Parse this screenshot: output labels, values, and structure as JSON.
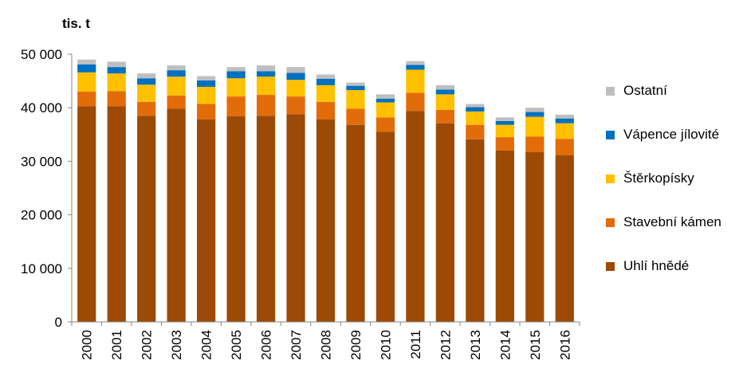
{
  "chart_data": {
    "type": "bar",
    "stacked": true,
    "unit": "tis. t",
    "categories": [
      "2000",
      "2001",
      "2002",
      "2003",
      "2004",
      "2005",
      "2006",
      "2007",
      "2008",
      "2009",
      "2010",
      "2011",
      "2012",
      "2013",
      "2014",
      "2015",
      "2016"
    ],
    "ylim": [
      0,
      50000
    ],
    "yticks": [
      0,
      10000,
      20000,
      30000,
      40000,
      50000
    ],
    "ytick_labels": [
      "0",
      "10 000",
      "20 000",
      "30 000",
      "40 000",
      "50 000"
    ],
    "grid": false,
    "legend_placement": "right",
    "series": [
      {
        "name": "Uhlí hnědé",
        "color": "#9C4A06",
        "values": [
          40300,
          40300,
          38500,
          39800,
          37800,
          38400,
          38500,
          38800,
          37800,
          36800,
          35500,
          39400,
          37100,
          34100,
          32000,
          31700,
          31100
        ]
      },
      {
        "name": "Stavební kámen",
        "color": "#E36C0A",
        "values": [
          2700,
          2800,
          2600,
          2500,
          2900,
          3700,
          3900,
          3300,
          3300,
          3000,
          2700,
          3400,
          2500,
          2700,
          2500,
          2900,
          3100
        ]
      },
      {
        "name": "Štěrkopísky",
        "color": "#FFC000",
        "values": [
          3600,
          3300,
          3200,
          3500,
          3200,
          3400,
          3400,
          3100,
          3100,
          3500,
          2800,
          4300,
          2900,
          2500,
          2300,
          3700,
          2900
        ]
      },
      {
        "name": "Vápence jílovité",
        "color": "#0070C0",
        "values": [
          1500,
          1200,
          1200,
          1200,
          1200,
          1300,
          1000,
          1300,
          1200,
          800,
          700,
          900,
          900,
          800,
          700,
          900,
          900
        ]
      },
      {
        "name": "Ostatní",
        "color": "#BFBFBF",
        "values": [
          900,
          1000,
          900,
          900,
          800,
          800,
          1100,
          1100,
          800,
          600,
          800,
          700,
          800,
          600,
          700,
          800,
          700
        ]
      }
    ]
  }
}
